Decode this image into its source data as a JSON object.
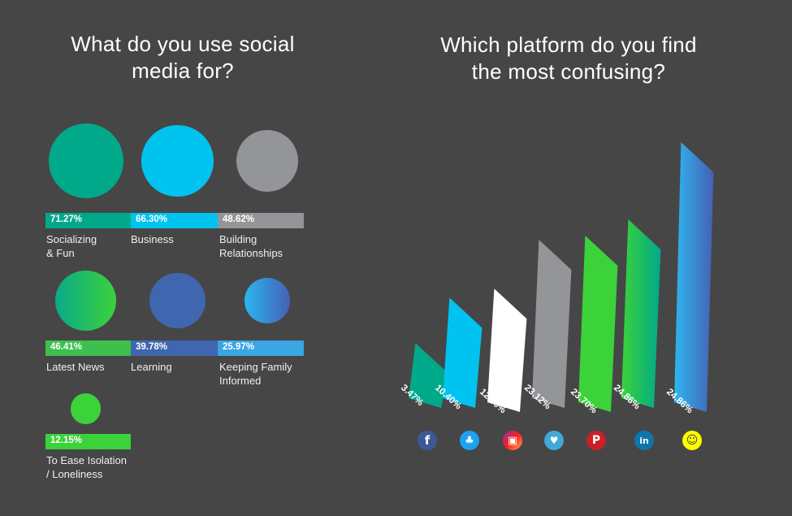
{
  "left_chart": {
    "title": "What do you use social media for?",
    "items": [
      {
        "label": "Socializing\n& Fun",
        "value": 71.27,
        "value_label": "71.27%",
        "color": "#00a98a",
        "bar_color": "#00a98a"
      },
      {
        "label": "Business",
        "value": 66.3,
        "value_label": "66.30%",
        "color": "#00c3f0",
        "bar_color": "#00c3f0"
      },
      {
        "label": "Building\nRelationships",
        "value": 48.62,
        "value_label": "48.62%",
        "color": "#939598",
        "bar_color": "#939598"
      },
      {
        "label": "Latest News",
        "value": 46.41,
        "value_label": "46.41%",
        "color": "#3ec04e",
        "bar_color": "#3ec04e"
      },
      {
        "label": "Learning",
        "value": 39.78,
        "value_label": "39.78%",
        "color": "#4066b0",
        "bar_color": "#4066b0"
      },
      {
        "label": "Keeping Family\nInformed",
        "value": 25.97,
        "value_label": "25.97%",
        "color": "#3aa6e3",
        "bar_color": "#3aa6e3"
      },
      {
        "label": "To Ease Isolation\n/ Loneliness",
        "value": 12.15,
        "value_label": "12.15%",
        "color": "#3bd23a",
        "bar_color": "#3bd23a"
      }
    ]
  },
  "chart_data": {
    "type": "bar",
    "title": "Which platform do you find the most confusing?",
    "categories": [
      "facebook",
      "twitter",
      "instagram",
      "periscope",
      "pinterest",
      "linkedin",
      "snapchat"
    ],
    "values": [
      3.47,
      10.4,
      12.4,
      23.12,
      23.7,
      24.86,
      24.86
    ],
    "value_labels": [
      "3.47%",
      "10.40%",
      "12.40%",
      "23.12%",
      "23.70%",
      "24.86%",
      "24.86%"
    ],
    "colors": [
      "#00a98a",
      "#00c3f0",
      "#ffffff",
      "#939598",
      "#3bd23a",
      "#00a98a",
      "#3a8fd6"
    ],
    "icons": [
      "facebook-icon",
      "twitter-icon",
      "instagram-icon",
      "periscope-icon",
      "pinterest-icon",
      "linkedin-icon",
      "snapchat-icon"
    ]
  }
}
